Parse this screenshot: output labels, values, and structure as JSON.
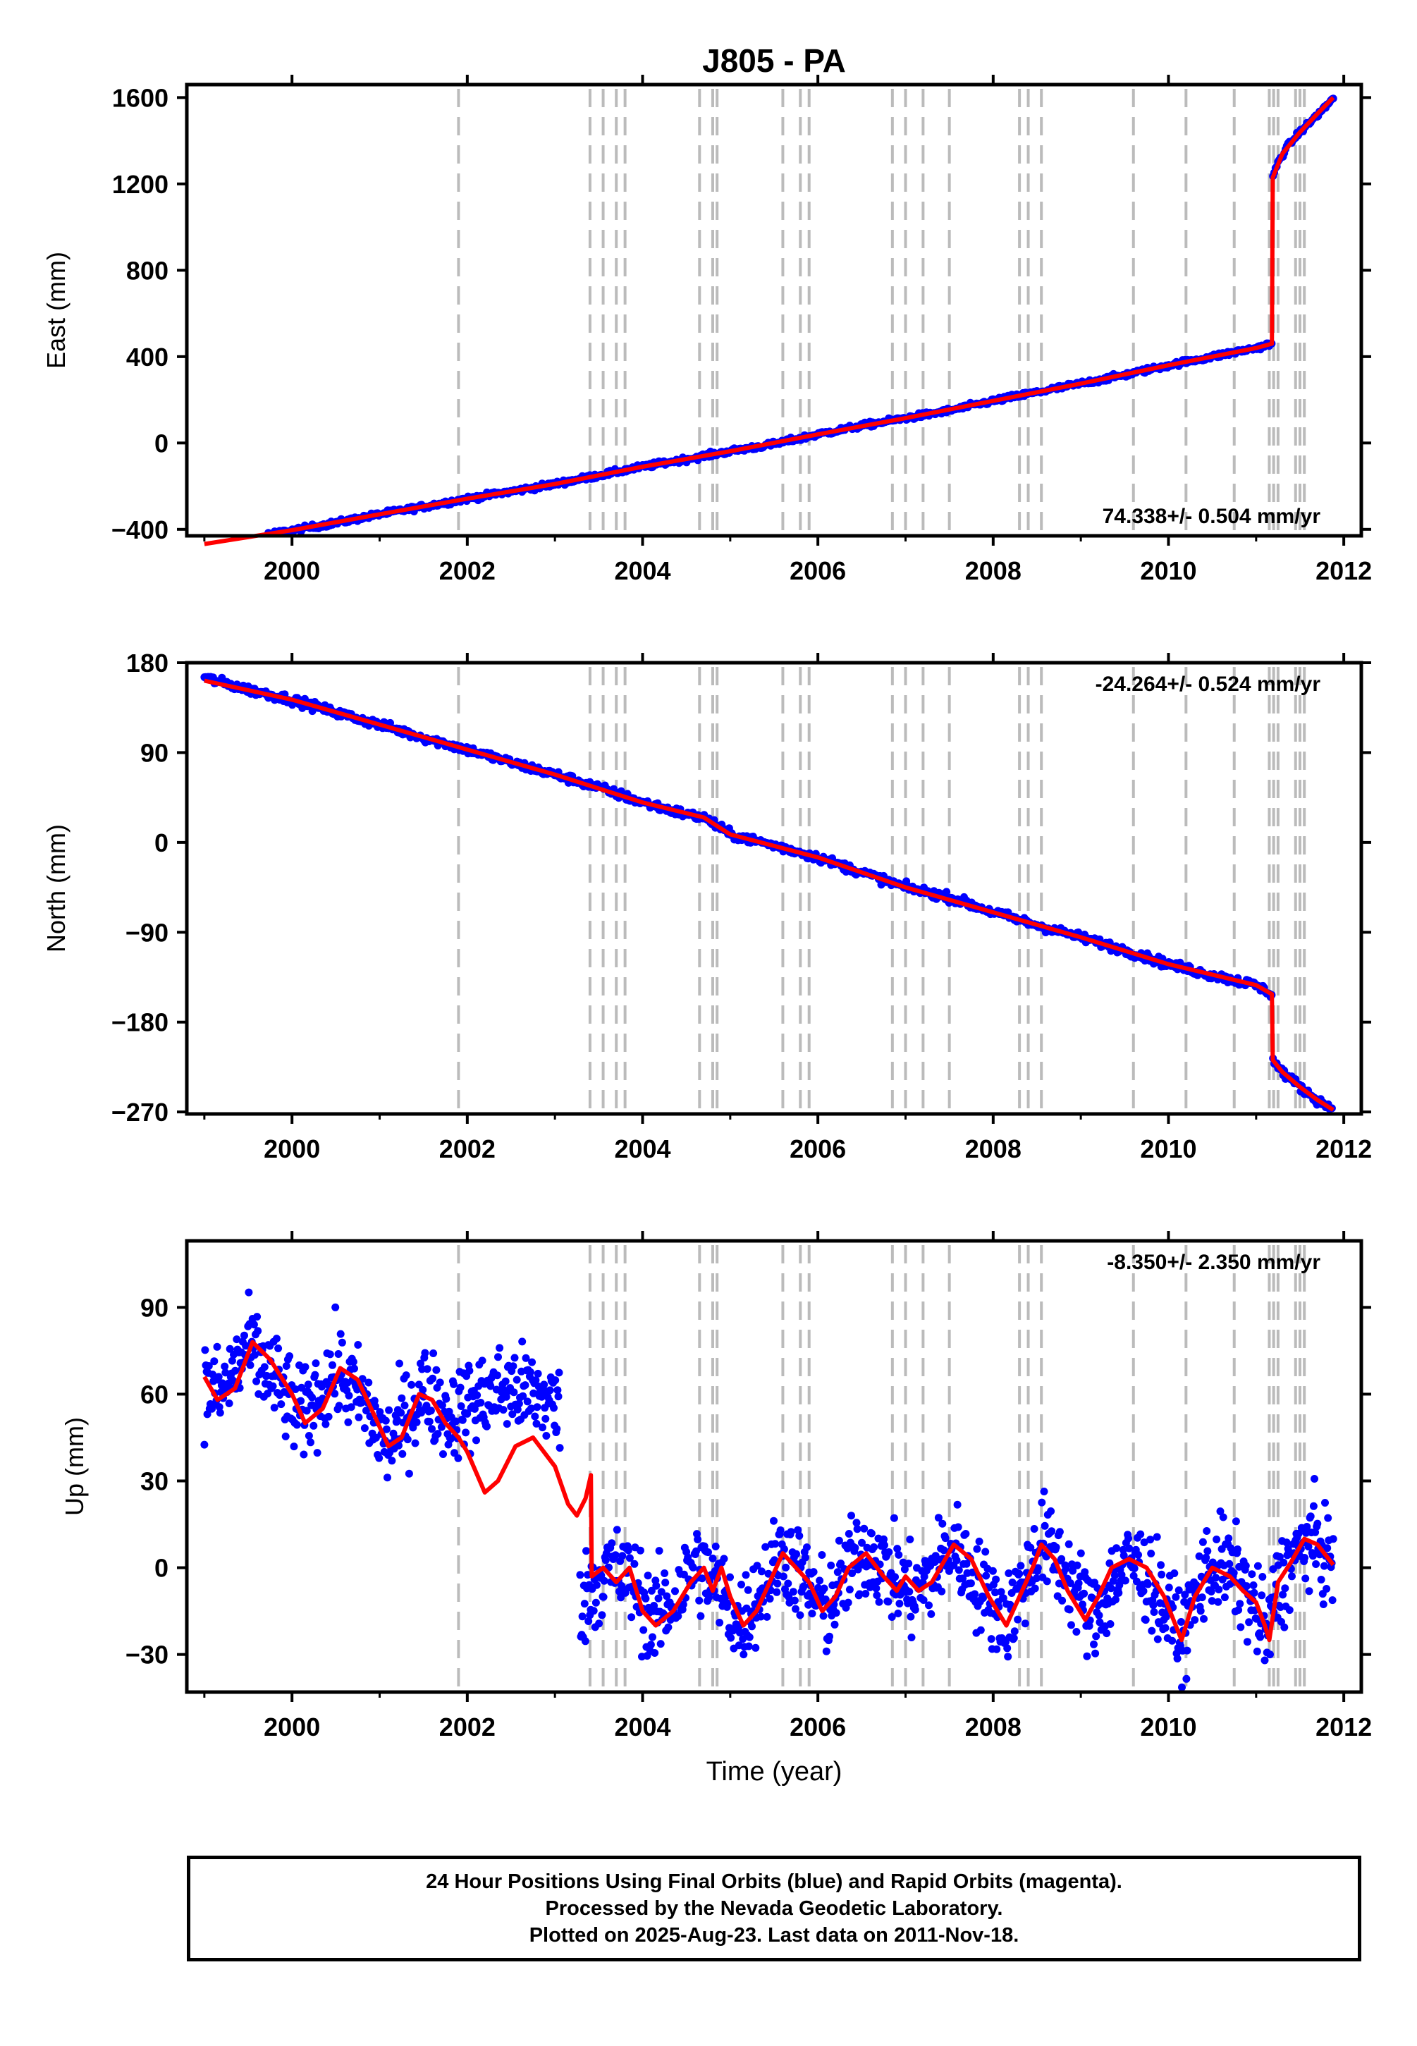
{
  "chart_data": [
    {
      "type": "scatter",
      "panel": "east",
      "title": "J805 - PA",
      "ylabel": "East (mm)",
      "xlabel": "",
      "xlim": [
        1998.8,
        2012.2
      ],
      "ylim": [
        -430,
        1660
      ],
      "xticks": [
        2000,
        2002,
        2004,
        2006,
        2008,
        2010,
        2012
      ],
      "yticks": [
        -400,
        0,
        400,
        800,
        1200,
        1600
      ],
      "rate_label": "74.338+/- 0.504 mm/yr",
      "series": [
        {
          "name": "",
          "color": "#0000ff",
          "x": [
            1999.0,
            1999.5,
            2000.0,
            2000.5,
            2001.0,
            2001.5,
            2002.0,
            2002.5,
            2003.0,
            2003.5,
            2004.0,
            2004.5,
            2005.0,
            2005.5,
            2006.0,
            2006.5,
            2007.0,
            2007.5,
            2008.0,
            2008.5,
            2009.0,
            2009.5,
            2010.0,
            2010.5,
            2011.0,
            2011.18,
            2011.19,
            2011.25,
            2011.35,
            2011.5,
            2011.65,
            2011.8,
            2011.88
          ],
          "y": [
            -470,
            -440,
            -405,
            -370,
            -330,
            -295,
            -258,
            -225,
            -190,
            -150,
            -110,
            -75,
            -38,
            -5,
            40,
            80,
            115,
            150,
            195,
            235,
            275,
            315,
            360,
            400,
            440,
            460,
            1230,
            1300,
            1370,
            1440,
            1500,
            1560,
            1600
          ]
        },
        {
          "name": "",
          "color": "#ff0000",
          "x": [
            1999.0,
            2000.0,
            2001.0,
            2002.0,
            2003.0,
            2004.0,
            2005.0,
            2006.0,
            2007.0,
            2008.0,
            2009.0,
            2010.0,
            2011.0,
            2011.18,
            2011.19,
            2011.3,
            2011.5,
            2011.7,
            2011.88
          ],
          "y": [
            -468,
            -404,
            -330,
            -258,
            -190,
            -110,
            -38,
            40,
            115,
            195,
            275,
            360,
            440,
            460,
            1230,
            1340,
            1440,
            1525,
            1600
          ]
        }
      ],
      "reference_lines_x": [
        2001.9,
        2003.4,
        2003.55,
        2003.7,
        2003.8,
        2004.65,
        2004.8,
        2004.85,
        2005.6,
        2005.8,
        2005.9,
        2006.85,
        2007.0,
        2007.2,
        2007.5,
        2008.3,
        2008.4,
        2008.55,
        2009.6,
        2010.2,
        2010.75,
        2011.15,
        2011.2,
        2011.25,
        2011.45,
        2011.5,
        2011.55
      ]
    },
    {
      "type": "scatter",
      "panel": "north",
      "ylabel": "North (mm)",
      "xlabel": "",
      "xlim": [
        1998.8,
        2012.2
      ],
      "ylim": [
        -272,
        180
      ],
      "xticks": [
        2000,
        2002,
        2004,
        2006,
        2008,
        2010,
        2012
      ],
      "yticks": [
        -270,
        -180,
        -90,
        0,
        90,
        180
      ],
      "rate_label": "-24.264+/- 0.524 mm/yr",
      "series": [
        {
          "name": "",
          "color": "#0000ff",
          "x": [
            1999.0,
            1999.5,
            2000.0,
            2000.5,
            2001.0,
            2001.5,
            2002.0,
            2002.5,
            2003.0,
            2003.5,
            2004.0,
            2004.5,
            2004.7,
            2005.0,
            2005.5,
            2006.0,
            2006.5,
            2007.0,
            2007.5,
            2008.0,
            2008.5,
            2009.0,
            2009.5,
            2010.0,
            2010.5,
            2011.0,
            2011.18,
            2011.19,
            2011.3,
            2011.5,
            2011.7,
            2011.88
          ],
          "y": [
            165,
            153,
            143,
            130,
            118,
            105,
            93,
            80,
            68,
            55,
            40,
            28,
            25,
            8,
            -3,
            -15,
            -30,
            -45,
            -55,
            -70,
            -83,
            -95,
            -108,
            -122,
            -133,
            -143,
            -152,
            -218,
            -230,
            -245,
            -258,
            -268
          ]
        },
        {
          "name": "",
          "color": "#ff0000",
          "x": [
            1999.0,
            2000.0,
            2001.0,
            2002.0,
            2003.0,
            2004.0,
            2004.7,
            2005.0,
            2006.0,
            2007.0,
            2008.0,
            2009.0,
            2010.0,
            2011.0,
            2011.18,
            2011.19,
            2011.3,
            2011.5,
            2011.7,
            2011.88
          ],
          "y": [
            162,
            143,
            118,
            93,
            68,
            40,
            25,
            8,
            -15,
            -45,
            -70,
            -95,
            -122,
            -143,
            -152,
            -218,
            -230,
            -245,
            -258,
            -268
          ]
        }
      ],
      "reference_lines_x": [
        2001.9,
        2003.4,
        2003.55,
        2003.7,
        2003.8,
        2004.65,
        2004.8,
        2004.85,
        2005.6,
        2005.8,
        2005.9,
        2006.85,
        2007.0,
        2007.2,
        2007.5,
        2008.3,
        2008.4,
        2008.55,
        2009.6,
        2010.2,
        2010.75,
        2011.15,
        2011.2,
        2011.25,
        2011.45,
        2011.5,
        2011.55
      ]
    },
    {
      "type": "scatter",
      "panel": "up",
      "ylabel": "Up (mm)",
      "xlabel": "Time (year)",
      "xlim": [
        1998.8,
        2012.2
      ],
      "ylim": [
        -43,
        113
      ],
      "xticks": [
        2000,
        2002,
        2004,
        2006,
        2008,
        2010,
        2012
      ],
      "yticks": [
        -30,
        0,
        30,
        60,
        90
      ],
      "rate_label": "-8.350+/- 2.350 mm/yr",
      "series": [
        {
          "name": "",
          "color": "#0000ff",
          "x": [
            1999.0,
            1999.2,
            1999.5,
            1999.8,
            2000.1,
            2000.5,
            2000.8,
            2001.1,
            2001.5,
            2001.8,
            2001.95,
            2002.4,
            2002.8,
            2003.05,
            2003.1,
            2003.3,
            2003.6,
            2003.9,
            2004.1,
            2004.4,
            2004.6,
            2004.9,
            2005.1,
            2005.4,
            2005.6,
            2005.85,
            2006.1,
            2006.4,
            2006.6,
            2006.85,
            2007.1,
            2007.3,
            2007.55,
            2007.8,
            2008.15,
            2008.4,
            2008.55,
            2008.8,
            2009.15,
            2009.4,
            2009.6,
            2009.8,
            2010.15,
            2010.4,
            2010.6,
            2010.85,
            2011.15,
            2011.2,
            2011.4,
            2011.6,
            2011.88
          ],
          "y": [
            62,
            60,
            76,
            65,
            52,
            68,
            58,
            42,
            62,
            52,
            55,
            62,
            60,
            55,
            -20,
            -12,
            0,
            -5,
            -18,
            -10,
            2,
            -8,
            -20,
            -5,
            6,
            -5,
            -15,
            2,
            6,
            -3,
            -10,
            -2,
            8,
            -5,
            -18,
            -2,
            10,
            0,
            -18,
            -3,
            2,
            -5,
            -25,
            -2,
            2,
            -6,
            -25,
            -10,
            2,
            10,
            2
          ]
        },
        {
          "name": "",
          "color": "#ff0000",
          "x": [
            1999.0,
            1999.15,
            1999.35,
            1999.55,
            1999.75,
            2000.0,
            2000.15,
            2000.35,
            2000.55,
            2000.75,
            2000.95,
            2001.1,
            2001.25,
            2001.45,
            2001.6,
            2001.75,
            2001.9,
            2002.0,
            2002.2,
            2002.35,
            2002.55,
            2002.75,
            2003.0,
            2003.15,
            2003.25,
            2003.35,
            2003.41,
            2003.42,
            2003.55,
            2003.7,
            2003.85,
            2004.0,
            2004.15,
            2004.35,
            2004.55,
            2004.7,
            2004.8,
            2004.9,
            2005.0,
            2005.15,
            2005.3,
            2005.45,
            2005.6,
            2005.75,
            2005.9,
            2006.05,
            2006.2,
            2006.35,
            2006.55,
            2006.75,
            2006.9,
            2007.0,
            2007.15,
            2007.3,
            2007.55,
            2007.75,
            2007.95,
            2008.15,
            2008.3,
            2008.45,
            2008.55,
            2008.7,
            2008.85,
            2009.05,
            2009.2,
            2009.35,
            2009.55,
            2009.75,
            2009.95,
            2010.15,
            2010.3,
            2010.5,
            2010.7,
            2010.85,
            2011.0,
            2011.1,
            2011.15,
            2011.25,
            2011.4,
            2011.55,
            2011.7,
            2011.88
          ],
          "y": [
            66,
            58,
            62,
            78,
            72,
            60,
            50,
            55,
            69,
            65,
            52,
            42,
            45,
            60,
            58,
            50,
            45,
            40,
            26,
            30,
            42,
            45,
            35,
            22,
            18,
            24,
            32,
            -3,
            0,
            -5,
            0,
            -15,
            -20,
            -15,
            -5,
            0,
            -8,
            0,
            -10,
            -20,
            -15,
            -5,
            5,
            0,
            -5,
            -15,
            -10,
            0,
            5,
            -3,
            -8,
            -3,
            -8,
            -5,
            8,
            3,
            -10,
            -20,
            -10,
            0,
            8,
            3,
            -8,
            -18,
            -10,
            0,
            3,
            0,
            -10,
            -25,
            -10,
            0,
            -3,
            -8,
            -12,
            -20,
            -25,
            -5,
            2,
            10,
            8,
            1
          ]
        }
      ],
      "reference_lines_x": [
        2001.9,
        2003.4,
        2003.55,
        2003.7,
        2003.8,
        2004.65,
        2004.8,
        2004.85,
        2005.6,
        2005.8,
        2005.9,
        2006.85,
        2007.0,
        2007.2,
        2007.5,
        2008.3,
        2008.4,
        2008.55,
        2009.6,
        2010.2,
        2010.75,
        2011.15,
        2011.2,
        2011.25,
        2011.45,
        2011.5,
        2011.55
      ]
    }
  ],
  "footer": {
    "line1": "24 Hour Positions Using Final Orbits (blue) and Rapid Orbits (magenta).",
    "line2": "Processed by the Nevada Geodetic Laboratory.",
    "line3": "Plotted on 2025-Aug-23. Last data on 2011-Nov-18."
  }
}
